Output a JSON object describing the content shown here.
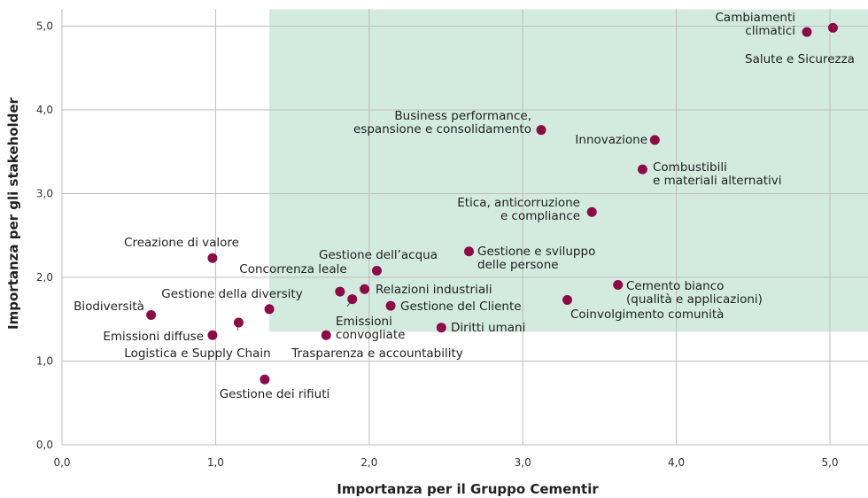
{
  "chart_data": {
    "type": "scatter",
    "title": "",
    "xlabel": "Importanza per il Gruppo Cementir",
    "ylabel": "Importanza per gli stakeholder",
    "xlim": [
      0,
      5.2
    ],
    "ylim": [
      0,
      5.2
    ],
    "xticks": [
      0,
      1,
      2,
      3,
      4,
      5
    ],
    "yticks": [
      0,
      1,
      2,
      3,
      4,
      5
    ],
    "xtick_labels": [
      "0,0",
      "1,0",
      "2,0",
      "3,0",
      "4,0",
      "5,0"
    ],
    "ytick_labels": [
      "0,0",
      "1,0",
      "2,0",
      "3,0",
      "4,0",
      "5,0"
    ],
    "grid": true,
    "highlight_region": {
      "x": [
        1.35,
        5.2
      ],
      "y": [
        1.35,
        5.2
      ],
      "color": "#d3eadf"
    },
    "point_color": "#8b0a47",
    "points": [
      {
        "label": "Cambiamenti climatici",
        "x": 4.85,
        "y": 4.93
      },
      {
        "label": "Salute e Sicurezza",
        "x": 5.02,
        "y": 4.98
      },
      {
        "label": "Business performance, espansione e consolidamento",
        "x": 3.12,
        "y": 3.76
      },
      {
        "label": "Innovazione",
        "x": 3.86,
        "y": 3.64
      },
      {
        "label": "Combustibili e materiali alternativi",
        "x": 3.78,
        "y": 3.29
      },
      {
        "label": "Etica, anticorruzione e compliance",
        "x": 3.45,
        "y": 2.78
      },
      {
        "label": "Gestione e sviluppo delle persone",
        "x": 2.65,
        "y": 2.31
      },
      {
        "label": "Creazione di valore",
        "x": 0.98,
        "y": 2.23
      },
      {
        "label": "Gestione dell’acqua",
        "x": 2.05,
        "y": 2.08
      },
      {
        "label": "Concorrenza leale",
        "x": 1.81,
        "y": 1.83
      },
      {
        "label": "Relazioni industriali",
        "x": 1.97,
        "y": 1.86
      },
      {
        "label": "Cemento bianco (qualità e applicazioni)",
        "x": 3.62,
        "y": 1.91
      },
      {
        "label": "Emissioni convogliate",
        "x": 1.89,
        "y": 1.74
      },
      {
        "label": "Gestione del Cliente",
        "x": 2.14,
        "y": 1.66
      },
      {
        "label": "Coinvolgimento comunità",
        "x": 3.29,
        "y": 1.73
      },
      {
        "label": "Gestione della diversity",
        "x": 1.35,
        "y": 1.62
      },
      {
        "label": "Biodiversità",
        "x": 0.58,
        "y": 1.55
      },
      {
        "label": "Logistica e Supply Chain",
        "x": 1.15,
        "y": 1.46
      },
      {
        "label": "Diritti umani",
        "x": 2.47,
        "y": 1.4
      },
      {
        "label": "Emissioni diffuse",
        "x": 0.98,
        "y": 1.31
      },
      {
        "label": "Trasparenza e accountability",
        "x": 1.72,
        "y": 1.31
      },
      {
        "label": "Gestione dei rifiuti",
        "x": 1.32,
        "y": 0.78
      }
    ]
  }
}
